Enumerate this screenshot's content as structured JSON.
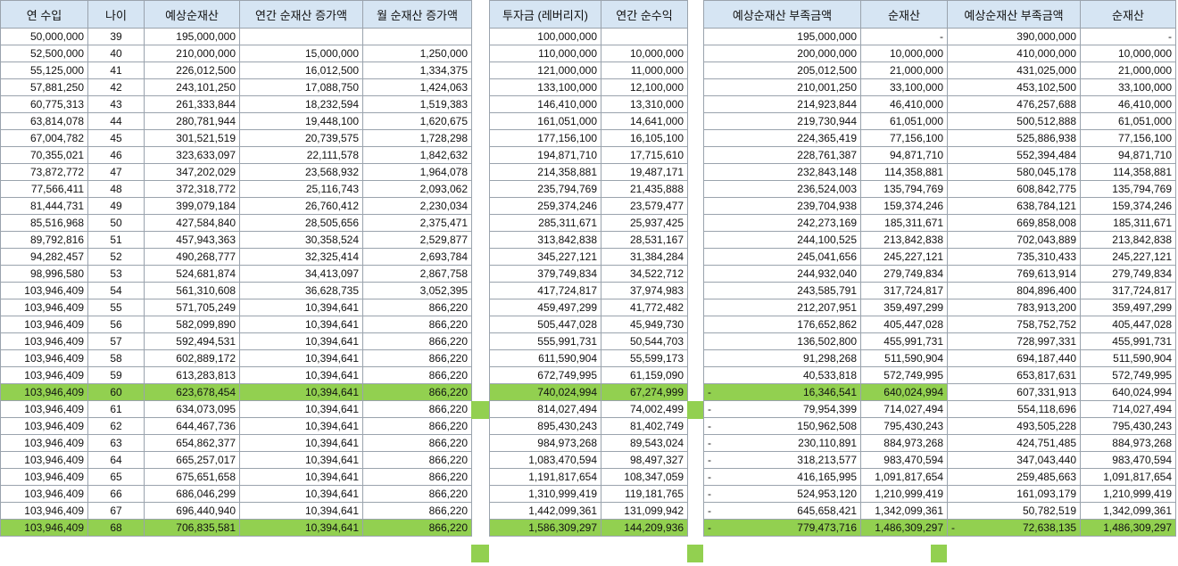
{
  "block1": {
    "headers": [
      "연 수입",
      "나이",
      "예상순재산",
      "연간 순재산 증가액",
      "월 순재산 증가액"
    ],
    "rows": [
      [
        "50,000,000",
        "39",
        "195,000,000",
        "",
        ""
      ],
      [
        "52,500,000",
        "40",
        "210,000,000",
        "15,000,000",
        "1,250,000"
      ],
      [
        "55,125,000",
        "41",
        "226,012,500",
        "16,012,500",
        "1,334,375"
      ],
      [
        "57,881,250",
        "42",
        "243,101,250",
        "17,088,750",
        "1,424,063"
      ],
      [
        "60,775,313",
        "43",
        "261,333,844",
        "18,232,594",
        "1,519,383"
      ],
      [
        "63,814,078",
        "44",
        "280,781,944",
        "19,448,100",
        "1,620,675"
      ],
      [
        "67,004,782",
        "45",
        "301,521,519",
        "20,739,575",
        "1,728,298"
      ],
      [
        "70,355,021",
        "46",
        "323,633,097",
        "22,111,578",
        "1,842,632"
      ],
      [
        "73,872,772",
        "47",
        "347,202,029",
        "23,568,932",
        "1,964,078"
      ],
      [
        "77,566,411",
        "48",
        "372,318,772",
        "25,116,743",
        "2,093,062"
      ],
      [
        "81,444,731",
        "49",
        "399,079,184",
        "26,760,412",
        "2,230,034"
      ],
      [
        "85,516,968",
        "50",
        "427,584,840",
        "28,505,656",
        "2,375,471"
      ],
      [
        "89,792,816",
        "51",
        "457,943,363",
        "30,358,524",
        "2,529,877"
      ],
      [
        "94,282,457",
        "52",
        "490,268,777",
        "32,325,414",
        "2,693,784"
      ],
      [
        "98,996,580",
        "53",
        "524,681,874",
        "34,413,097",
        "2,867,758"
      ],
      [
        "103,946,409",
        "54",
        "561,310,608",
        "36,628,735",
        "3,052,395"
      ],
      [
        "103,946,409",
        "55",
        "571,705,249",
        "10,394,641",
        "866,220"
      ],
      [
        "103,946,409",
        "56",
        "582,099,890",
        "10,394,641",
        "866,220"
      ],
      [
        "103,946,409",
        "57",
        "592,494,531",
        "10,394,641",
        "866,220"
      ],
      [
        "103,946,409",
        "58",
        "602,889,172",
        "10,394,641",
        "866,220"
      ],
      [
        "103,946,409",
        "59",
        "613,283,813",
        "10,394,641",
        "866,220"
      ],
      [
        "103,946,409",
        "60",
        "623,678,454",
        "10,394,641",
        "866,220"
      ],
      [
        "103,946,409",
        "61",
        "634,073,095",
        "10,394,641",
        "866,220"
      ],
      [
        "103,946,409",
        "62",
        "644,467,736",
        "10,394,641",
        "866,220"
      ],
      [
        "103,946,409",
        "63",
        "654,862,377",
        "10,394,641",
        "866,220"
      ],
      [
        "103,946,409",
        "64",
        "665,257,017",
        "10,394,641",
        "866,220"
      ],
      [
        "103,946,409",
        "65",
        "675,651,658",
        "10,394,641",
        "866,220"
      ],
      [
        "103,946,409",
        "66",
        "686,046,299",
        "10,394,641",
        "866,220"
      ],
      [
        "103,946,409",
        "67",
        "696,440,940",
        "10,394,641",
        "866,220"
      ],
      [
        "103,946,409",
        "68",
        "706,835,581",
        "10,394,641",
        "866,220"
      ]
    ]
  },
  "block2": {
    "headers": [
      "투자금 (레버리지)",
      "연간 순수익"
    ],
    "rows": [
      [
        "100,000,000",
        ""
      ],
      [
        "110,000,000",
        "10,000,000"
      ],
      [
        "121,000,000",
        "11,000,000"
      ],
      [
        "133,100,000",
        "12,100,000"
      ],
      [
        "146,410,000",
        "13,310,000"
      ],
      [
        "161,051,000",
        "14,641,000"
      ],
      [
        "177,156,100",
        "16,105,100"
      ],
      [
        "194,871,710",
        "17,715,610"
      ],
      [
        "214,358,881",
        "19,487,171"
      ],
      [
        "235,794,769",
        "21,435,888"
      ],
      [
        "259,374,246",
        "23,579,477"
      ],
      [
        "285,311,671",
        "25,937,425"
      ],
      [
        "313,842,838",
        "28,531,167"
      ],
      [
        "345,227,121",
        "31,384,284"
      ],
      [
        "379,749,834",
        "34,522,712"
      ],
      [
        "417,724,817",
        "37,974,983"
      ],
      [
        "459,497,299",
        "41,772,482"
      ],
      [
        "505,447,028",
        "45,949,730"
      ],
      [
        "555,991,731",
        "50,544,703"
      ],
      [
        "611,590,904",
        "55,599,173"
      ],
      [
        "672,749,995",
        "61,159,090"
      ],
      [
        "740,024,994",
        "67,274,999"
      ],
      [
        "814,027,494",
        "74,002,499"
      ],
      [
        "895,430,243",
        "81,402,749"
      ],
      [
        "984,973,268",
        "89,543,024"
      ],
      [
        "1,083,470,594",
        "98,497,327"
      ],
      [
        "1,191,817,654",
        "108,347,059"
      ],
      [
        "1,310,999,419",
        "119,181,765"
      ],
      [
        "1,442,099,361",
        "131,099,942"
      ],
      [
        "1,586,309,297",
        "144,209,936"
      ]
    ]
  },
  "block3": {
    "headers": [
      "예상순재산 부족금액",
      "순재산"
    ],
    "rows": [
      [
        "",
        "195,000,000",
        "-"
      ],
      [
        "",
        "200,000,000",
        "10,000,000"
      ],
      [
        "",
        "205,012,500",
        "21,000,000"
      ],
      [
        "",
        "210,001,250",
        "33,100,000"
      ],
      [
        "",
        "214,923,844",
        "46,410,000"
      ],
      [
        "",
        "219,730,944",
        "61,051,000"
      ],
      [
        "",
        "224,365,419",
        "77,156,100"
      ],
      [
        "",
        "228,761,387",
        "94,871,710"
      ],
      [
        "",
        "232,843,148",
        "114,358,881"
      ],
      [
        "",
        "236,524,003",
        "135,794,769"
      ],
      [
        "",
        "239,704,938",
        "159,374,246"
      ],
      [
        "",
        "242,273,169",
        "185,311,671"
      ],
      [
        "",
        "244,100,525",
        "213,842,838"
      ],
      [
        "",
        "245,041,656",
        "245,227,121"
      ],
      [
        "",
        "244,932,040",
        "279,749,834"
      ],
      [
        "",
        "243,585,791",
        "317,724,817"
      ],
      [
        "",
        "212,207,951",
        "359,497,299"
      ],
      [
        "",
        "176,652,862",
        "405,447,028"
      ],
      [
        "",
        "136,502,800",
        "455,991,731"
      ],
      [
        "",
        "91,298,268",
        "511,590,904"
      ],
      [
        "",
        "40,533,818",
        "572,749,995"
      ],
      [
        "-",
        "16,346,541",
        "640,024,994"
      ],
      [
        "-",
        "79,954,399",
        "714,027,494"
      ],
      [
        "-",
        "150,962,508",
        "795,430,243"
      ],
      [
        "-",
        "230,110,891",
        "884,973,268"
      ],
      [
        "-",
        "318,213,577",
        "983,470,594"
      ],
      [
        "-",
        "416,165,995",
        "1,091,817,654"
      ],
      [
        "-",
        "524,953,120",
        "1,210,999,419"
      ],
      [
        "-",
        "645,658,421",
        "1,342,099,361"
      ],
      [
        "-",
        "779,473,716",
        "1,486,309,297"
      ]
    ]
  },
  "block4": {
    "headers": [
      "예상순재산 부족금액",
      "순재산"
    ],
    "rows": [
      [
        "",
        "390,000,000",
        "-"
      ],
      [
        "",
        "410,000,000",
        "10,000,000"
      ],
      [
        "",
        "431,025,000",
        "21,000,000"
      ],
      [
        "",
        "453,102,500",
        "33,100,000"
      ],
      [
        "",
        "476,257,688",
        "46,410,000"
      ],
      [
        "",
        "500,512,888",
        "61,051,000"
      ],
      [
        "",
        "525,886,938",
        "77,156,100"
      ],
      [
        "",
        "552,394,484",
        "94,871,710"
      ],
      [
        "",
        "580,045,178",
        "114,358,881"
      ],
      [
        "",
        "608,842,775",
        "135,794,769"
      ],
      [
        "",
        "638,784,121",
        "159,374,246"
      ],
      [
        "",
        "669,858,008",
        "185,311,671"
      ],
      [
        "",
        "702,043,889",
        "213,842,838"
      ],
      [
        "",
        "735,310,433",
        "245,227,121"
      ],
      [
        "",
        "769,613,914",
        "279,749,834"
      ],
      [
        "",
        "804,896,400",
        "317,724,817"
      ],
      [
        "",
        "783,913,200",
        "359,497,299"
      ],
      [
        "",
        "758,752,752",
        "405,447,028"
      ],
      [
        "",
        "728,997,331",
        "455,991,731"
      ],
      [
        "",
        "694,187,440",
        "511,590,904"
      ],
      [
        "",
        "653,817,631",
        "572,749,995"
      ],
      [
        "",
        "607,331,913",
        "640,024,994"
      ],
      [
        "",
        "554,118,696",
        "714,027,494"
      ],
      [
        "",
        "493,505,228",
        "795,430,243"
      ],
      [
        "",
        "424,751,485",
        "884,973,268"
      ],
      [
        "",
        "347,043,440",
        "983,470,594"
      ],
      [
        "",
        "259,485,663",
        "1,091,817,654"
      ],
      [
        "",
        "161,093,179",
        "1,210,999,419"
      ],
      [
        "",
        "50,782,519",
        "1,342,099,361"
      ],
      [
        "-",
        "72,638,135",
        "1,486,309,297"
      ]
    ]
  },
  "highlight_rows": [
    21,
    29
  ],
  "highlight_color": "#92d050",
  "header_color": "#d6e5f3"
}
